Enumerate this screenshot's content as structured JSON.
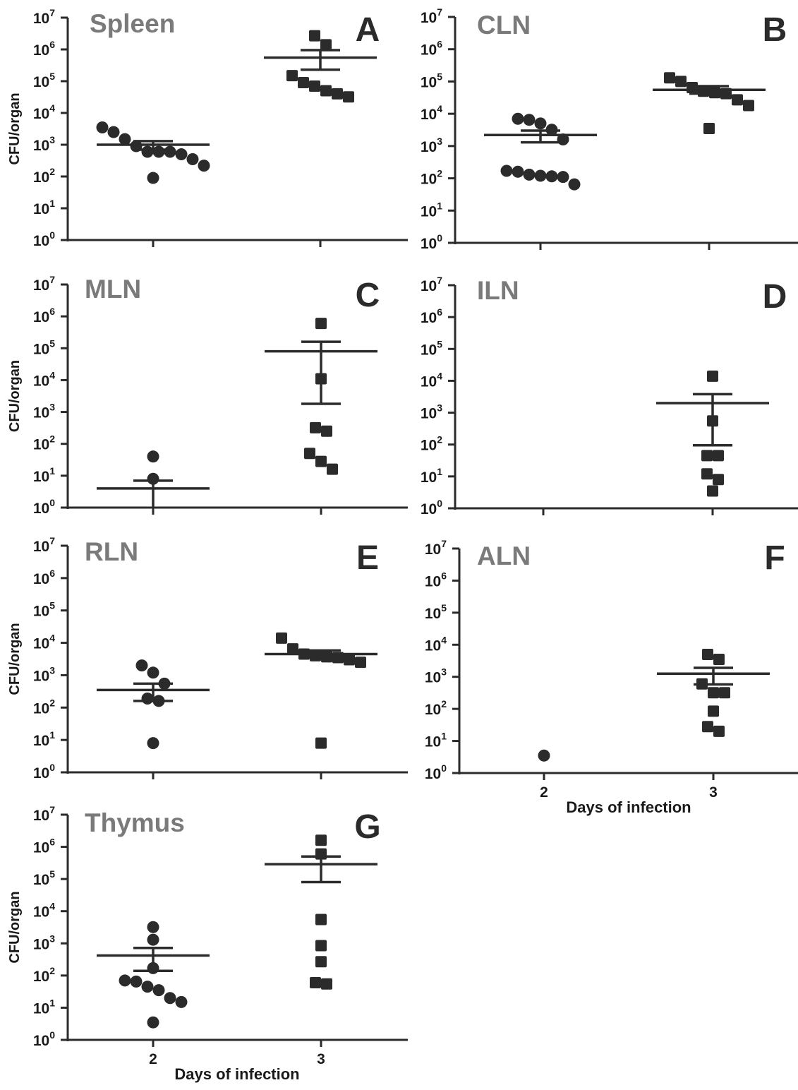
{
  "figure": {
    "x_axis_title": "Days of infection",
    "y_axis_title": "CFU/organ",
    "marker_color": "#2b2b2b",
    "title_color": "#7a7a7a"
  },
  "chart_data": [
    {
      "panel": "A",
      "title": "Spleen",
      "type": "scatter",
      "yscale": "log",
      "ylim": [
        1,
        10000000
      ],
      "ylabel": "CFU/organ",
      "xlabel": "",
      "yticks": [
        "10^0",
        "10^1",
        "10^2",
        "10^3",
        "10^4",
        "10^5",
        "10^6",
        "10^7"
      ],
      "categories": [
        "2",
        "3"
      ],
      "show_xticklabels": false,
      "series": [
        {
          "x": "2",
          "marker": "circle",
          "values": [
            3500,
            2500,
            1500,
            900,
            600,
            600,
            600,
            500,
            350,
            220,
            90
          ],
          "mean": 1000,
          "sem": [
            700,
            1300
          ]
        },
        {
          "x": "3",
          "marker": "square",
          "values": [
            2700000,
            1400000,
            150000,
            90000,
            70000,
            50000,
            40000,
            32000
          ],
          "mean": 550000,
          "sem": [
            230000,
            950000
          ]
        }
      ]
    },
    {
      "panel": "B",
      "title": "CLN",
      "type": "scatter",
      "yscale": "log",
      "ylim": [
        1,
        10000000
      ],
      "ylabel": "",
      "xlabel": "",
      "yticks": [
        "10^0",
        "10^1",
        "10^2",
        "10^3",
        "10^4",
        "10^5",
        "10^6",
        "10^7"
      ],
      "categories": [
        "2",
        "3"
      ],
      "show_xticklabels": false,
      "series": [
        {
          "x": "2",
          "marker": "circle",
          "values": [
            7000,
            6500,
            5000,
            3200,
            1600,
            170,
            160,
            130,
            120,
            115,
            110,
            65
          ],
          "mean": 2200,
          "sem": [
            1300,
            3000
          ]
        },
        {
          "x": "3",
          "marker": "square",
          "values": [
            130000,
            100000,
            65000,
            50000,
            45000,
            42000,
            27000,
            18000,
            3500
          ],
          "mean": 55000,
          "sem": [
            42000,
            72000
          ]
        }
      ]
    },
    {
      "panel": "C",
      "title": "MLN",
      "type": "scatter",
      "yscale": "log",
      "ylim": [
        1,
        10000000
      ],
      "ylabel": "CFU/organ",
      "xlabel": "",
      "yticks": [
        "10^0",
        "10^1",
        "10^2",
        "10^3",
        "10^4",
        "10^5",
        "10^6",
        "10^7"
      ],
      "categories": [
        "2",
        "3"
      ],
      "show_xticklabels": false,
      "series": [
        {
          "x": "2",
          "marker": "circle",
          "values": [
            40,
            8
          ],
          "mean": 4,
          "sem": [
            1,
            7
          ]
        },
        {
          "x": "3",
          "marker": "square",
          "values": [
            600000,
            11000,
            320,
            250,
            50,
            28,
            16
          ],
          "mean": 80000,
          "sem": [
            1800,
            160000
          ]
        }
      ]
    },
    {
      "panel": "D",
      "title": "ILN",
      "type": "scatter",
      "yscale": "log",
      "ylim": [
        1,
        10000000
      ],
      "ylabel": "",
      "xlabel": "",
      "yticks": [
        "10^0",
        "10^1",
        "10^2",
        "10^3",
        "10^4",
        "10^5",
        "10^6",
        "10^7"
      ],
      "categories": [
        "2",
        "3"
      ],
      "show_xticklabels": false,
      "series": [
        {
          "x": "3",
          "marker": "square",
          "values": [
            14000,
            550,
            45,
            45,
            12,
            8,
            3.5
          ],
          "mean": 2000,
          "sem": [
            95,
            3800
          ]
        }
      ]
    },
    {
      "panel": "E",
      "title": "RLN",
      "type": "scatter",
      "yscale": "log",
      "ylim": [
        1,
        10000000
      ],
      "ylabel": "CFU/organ",
      "xlabel": "",
      "yticks": [
        "10^0",
        "10^1",
        "10^2",
        "10^3",
        "10^4",
        "10^5",
        "10^6",
        "10^7"
      ],
      "categories": [
        "2",
        "3"
      ],
      "show_xticklabels": false,
      "series": [
        {
          "x": "2",
          "marker": "circle",
          "values": [
            2000,
            1200,
            550,
            190,
            160,
            8
          ],
          "mean": 350,
          "sem": [
            160,
            550
          ]
        },
        {
          "x": "3",
          "marker": "square",
          "values": [
            14000,
            6500,
            4500,
            4000,
            3700,
            3500,
            3000,
            2500,
            8
          ],
          "mean": 4500,
          "sem": [
            3500,
            5800
          ]
        }
      ]
    },
    {
      "panel": "F",
      "title": "ALN",
      "type": "scatter",
      "yscale": "log",
      "ylim": [
        1,
        10000000
      ],
      "ylabel": "",
      "xlabel": "Days of infection",
      "yticks": [
        "10^0",
        "10^1",
        "10^2",
        "10^3",
        "10^4",
        "10^5",
        "10^6",
        "10^7"
      ],
      "categories": [
        "2",
        "3"
      ],
      "show_xticklabels": true,
      "series": [
        {
          "x": "2",
          "marker": "circle",
          "values": [
            3.5
          ]
        },
        {
          "x": "3",
          "marker": "square",
          "values": [
            5000,
            3500,
            600,
            320,
            320,
            85,
            28,
            20
          ],
          "mean": 1250,
          "sem": [
            580,
            1900
          ]
        }
      ]
    },
    {
      "panel": "G",
      "title": "Thymus",
      "type": "scatter",
      "yscale": "log",
      "ylim": [
        1,
        10000000
      ],
      "ylabel": "CFU/organ",
      "xlabel": "Days of infection",
      "yticks": [
        "10^0",
        "10^1",
        "10^2",
        "10^3",
        "10^4",
        "10^5",
        "10^6",
        "10^7"
      ],
      "categories": [
        "2",
        "3"
      ],
      "show_xticklabels": true,
      "series": [
        {
          "x": "2",
          "marker": "circle",
          "values": [
            3200,
            1300,
            170,
            70,
            65,
            45,
            35,
            20,
            15,
            3.5
          ],
          "mean": 420,
          "sem": [
            140,
            720
          ]
        },
        {
          "x": "3",
          "marker": "square",
          "values": [
            1600000,
            600000,
            5500,
            850,
            270,
            60,
            55
          ],
          "mean": 290000,
          "sem": [
            80000,
            500000
          ]
        }
      ]
    }
  ]
}
